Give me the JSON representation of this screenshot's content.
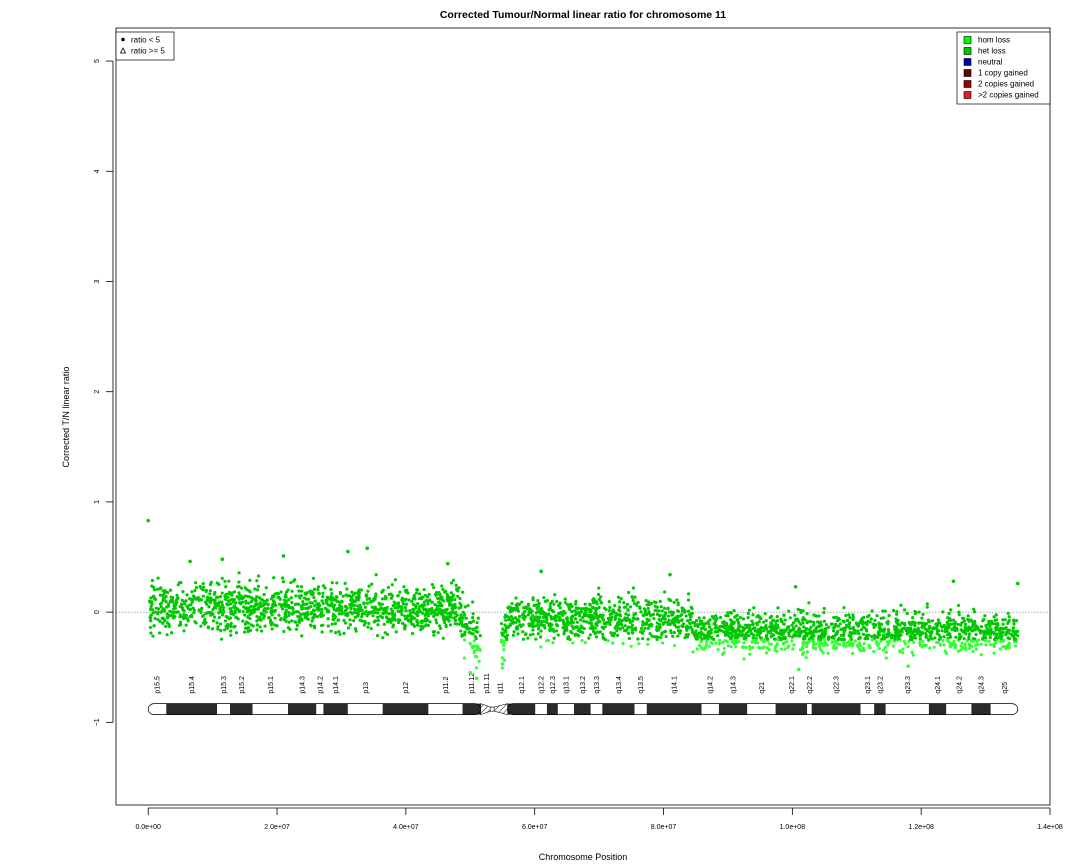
{
  "chart_data": {
    "type": "scatter",
    "title": "Corrected Tumour/Normal linear ratio for chromosome  11",
    "xlabel": "Chromosome Position",
    "ylabel": "Corrected T/N linear ratio",
    "xlim": [
      -5000000,
      140000000
    ],
    "ylim": [
      -1.75,
      5.3
    ],
    "x_ticks": [
      {
        "value": 0,
        "label": "0.0e+00"
      },
      {
        "value": 20000000,
        "label": "2.0e+07"
      },
      {
        "value": 40000000,
        "label": "4.0e+07"
      },
      {
        "value": 60000000,
        "label": "6.0e+07"
      },
      {
        "value": 80000000,
        "label": "8.0e+07"
      },
      {
        "value": 100000000,
        "label": "1.0e+08"
      },
      {
        "value": 120000000,
        "label": "1.2e+08"
      },
      {
        "value": 140000000,
        "label": "1.4e+08"
      }
    ],
    "y_ticks": [
      {
        "value": -1,
        "label": "−1"
      },
      {
        "value": 0,
        "label": "0"
      },
      {
        "value": 1,
        "label": "1"
      },
      {
        "value": 2,
        "label": "2"
      },
      {
        "value": 3,
        "label": "3"
      },
      {
        "value": 4,
        "label": "4"
      },
      {
        "value": 5,
        "label": "5"
      }
    ],
    "reference_line": {
      "y": 0,
      "style": "dotted",
      "color": "#555555"
    },
    "point_color": "#00c800",
    "segments": [
      {
        "x_start": 200000,
        "x_end": 48500000,
        "mean": 0.04,
        "spread": 0.11
      },
      {
        "x_start": 48500000,
        "x_end": 50500000,
        "mean": -0.12,
        "spread": 0.12
      },
      {
        "x_start": 50600000,
        "x_end": 51600000,
        "mean": -0.32,
        "spread": 0.13
      },
      {
        "x_start": 54800000,
        "x_end": 55500000,
        "mean": -0.22,
        "spread": 0.12
      },
      {
        "x_start": 55500000,
        "x_end": 84500000,
        "mean": -0.06,
        "spread": 0.1
      },
      {
        "x_start": 84500000,
        "x_end": 135000000,
        "mean": -0.18,
        "spread": 0.09
      }
    ],
    "outliers": [
      {
        "x": 0,
        "y": 0.83
      },
      {
        "x": 34000000,
        "y": 0.58
      },
      {
        "x": 31000000,
        "y": 0.55
      },
      {
        "x": 21000000,
        "y": 0.51
      },
      {
        "x": 11500000,
        "y": 0.48
      },
      {
        "x": 6500000,
        "y": 0.46
      },
      {
        "x": 46500000,
        "y": 0.44
      },
      {
        "x": 61000000,
        "y": 0.37
      },
      {
        "x": 81000000,
        "y": 0.34
      },
      {
        "x": 125000000,
        "y": 0.28
      },
      {
        "x": 135000000,
        "y": 0.26
      },
      {
        "x": 100500000,
        "y": 0.23
      },
      {
        "x": 50000000,
        "y": -0.55
      },
      {
        "x": 51000000,
        "y": -0.6
      },
      {
        "x": 55000000,
        "y": -0.47
      },
      {
        "x": 101000000,
        "y": -0.52
      },
      {
        "x": 118000000,
        "y": -0.49
      }
    ],
    "ideogram": {
      "y": -0.88,
      "start": 0,
      "end": 135000000,
      "centromere": 53400000,
      "bands": [
        {
          "name": "p15.5",
          "start": 0,
          "end": 2800000,
          "stain": "gneg"
        },
        {
          "name": "p15.4",
          "start": 2800000,
          "end": 10700000,
          "stain": "gpos"
        },
        {
          "name": "p15.3",
          "start": 10700000,
          "end": 12700000,
          "stain": "gneg"
        },
        {
          "name": "p15.2",
          "start": 12700000,
          "end": 16200000,
          "stain": "gpos"
        },
        {
          "name": "p15.1",
          "start": 16200000,
          "end": 21700000,
          "stain": "gneg"
        },
        {
          "name": "p14.3",
          "start": 21700000,
          "end": 26100000,
          "stain": "gpos"
        },
        {
          "name": "p14.2",
          "start": 26100000,
          "end": 27200000,
          "stain": "gneg"
        },
        {
          "name": "p14.1",
          "start": 27200000,
          "end": 31000000,
          "stain": "gpos"
        },
        {
          "name": "p13",
          "start": 31000000,
          "end": 36400000,
          "stain": "gneg"
        },
        {
          "name": "p12",
          "start": 36400000,
          "end": 43500000,
          "stain": "gpos"
        },
        {
          "name": "p11.2",
          "start": 43500000,
          "end": 48800000,
          "stain": "gneg"
        },
        {
          "name": "p11.12",
          "start": 48800000,
          "end": 51600000,
          "stain": "gpos"
        },
        {
          "name": "p11.11",
          "start": 51600000,
          "end": 53400000,
          "stain": "stalk"
        },
        {
          "name": "q11",
          "start": 53400000,
          "end": 55800000,
          "stain": "stalk"
        },
        {
          "name": "q12.1",
          "start": 55800000,
          "end": 60100000,
          "stain": "gpos"
        },
        {
          "name": "q12.2",
          "start": 60100000,
          "end": 61900000,
          "stain": "gneg"
        },
        {
          "name": "q12.3",
          "start": 61900000,
          "end": 63600000,
          "stain": "gpos"
        },
        {
          "name": "q13.1",
          "start": 63600000,
          "end": 66100000,
          "stain": "gneg"
        },
        {
          "name": "q13.2",
          "start": 66100000,
          "end": 68700000,
          "stain": "gpos"
        },
        {
          "name": "q13.3",
          "start": 68700000,
          "end": 70500000,
          "stain": "gneg"
        },
        {
          "name": "q13.4",
          "start": 70500000,
          "end": 75500000,
          "stain": "gpos"
        },
        {
          "name": "q13.5",
          "start": 75500000,
          "end": 77400000,
          "stain": "gneg"
        },
        {
          "name": "q14.1",
          "start": 77400000,
          "end": 85900000,
          "stain": "gpos"
        },
        {
          "name": "q14.2",
          "start": 85900000,
          "end": 88600000,
          "stain": "gneg"
        },
        {
          "name": "q14.3",
          "start": 88600000,
          "end": 93000000,
          "stain": "gpos"
        },
        {
          "name": "q21",
          "start": 93000000,
          "end": 97400000,
          "stain": "gneg"
        },
        {
          "name": "q22.1",
          "start": 97400000,
          "end": 102300000,
          "stain": "gpos"
        },
        {
          "name": "q22.2",
          "start": 102300000,
          "end": 103000000,
          "stain": "gneg"
        },
        {
          "name": "q22.3",
          "start": 103000000,
          "end": 110600000,
          "stain": "gpos"
        },
        {
          "name": "q23.1",
          "start": 110600000,
          "end": 112700000,
          "stain": "gneg"
        },
        {
          "name": "q23.2",
          "start": 112700000,
          "end": 114500000,
          "stain": "gpos"
        },
        {
          "name": "q23.3",
          "start": 114500000,
          "end": 121200000,
          "stain": "gneg"
        },
        {
          "name": "q24.1",
          "start": 121200000,
          "end": 123900000,
          "stain": "gpos"
        },
        {
          "name": "q24.2",
          "start": 123900000,
          "end": 127800000,
          "stain": "gneg"
        },
        {
          "name": "q24.3",
          "start": 127800000,
          "end": 130800000,
          "stain": "gpos"
        },
        {
          "name": "q25",
          "start": 130800000,
          "end": 135000000,
          "stain": "gneg"
        }
      ]
    },
    "legend_shape": {
      "position": "top-left",
      "entries": [
        {
          "label": "ratio < 5",
          "symbol": "filled-circle"
        },
        {
          "label": "ratio >= 5",
          "symbol": "open-triangle"
        }
      ]
    },
    "legend_status": {
      "position": "top-right",
      "entries": [
        {
          "label": "hom loss",
          "color": "#00ff00"
        },
        {
          "label": "het loss",
          "color": "#00c800"
        },
        {
          "label": "neutral",
          "color": "#0000aa"
        },
        {
          "label": "1 copy gained",
          "color": "#6b0000"
        },
        {
          "label": "2 copies gained",
          "color": "#a00000"
        },
        {
          "label": ">2 copies gained",
          "color": "#e02020"
        }
      ]
    }
  }
}
